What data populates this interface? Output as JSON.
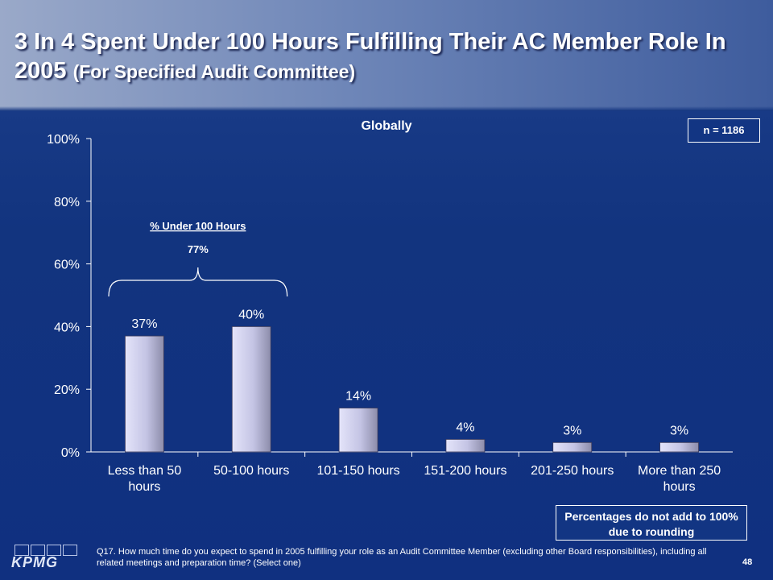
{
  "slide": {
    "title_main": "3 In 4 Spent Under 100 Hours Fulfilling Their AC Member Role In 2005",
    "title_sub": "(For Specified Audit Committee)",
    "n_label": "n = 1186",
    "rounding_note": "Percentages do not add to 100% due to rounding",
    "footnote": "Q17. How much time do you expect to spend in 2005 fulfilling your role as an Audit Committee Member (excluding other Board responsibilities), including all related meetings and preparation time? (Select one)",
    "page_number": "48",
    "logo_text": "KPMG"
  },
  "chart_data": {
    "type": "bar",
    "title": "Globally",
    "categories": [
      "Less than 50 hours",
      "50-100 hours",
      "101-150 hours",
      "151-200 hours",
      "201-250 hours",
      "More than 250 hours"
    ],
    "category_lines": [
      [
        "Less than 50",
        "hours"
      ],
      [
        "50-100 hours"
      ],
      [
        "101-150 hours"
      ],
      [
        "151-200 hours"
      ],
      [
        "201-250 hours"
      ],
      [
        "More than 250",
        "hours"
      ]
    ],
    "values": [
      37,
      40,
      14,
      4,
      3,
      3
    ],
    "data_labels": [
      "37%",
      "40%",
      "14%",
      "4%",
      "3%",
      "3%"
    ],
    "ylim": [
      0,
      100
    ],
    "yticks": [
      0,
      20,
      40,
      60,
      80,
      100
    ],
    "ytick_labels": [
      "0%",
      "20%",
      "40%",
      "60%",
      "80%",
      "100%"
    ],
    "grid": false,
    "annotation": {
      "label": "% Under 100 Hours",
      "value": "77%",
      "spans_categories": [
        0,
        1
      ]
    },
    "colors": {
      "bar_light": "#d8d8f4",
      "bar_dark": "#9a9ab4",
      "axis": "#ffffff"
    }
  }
}
